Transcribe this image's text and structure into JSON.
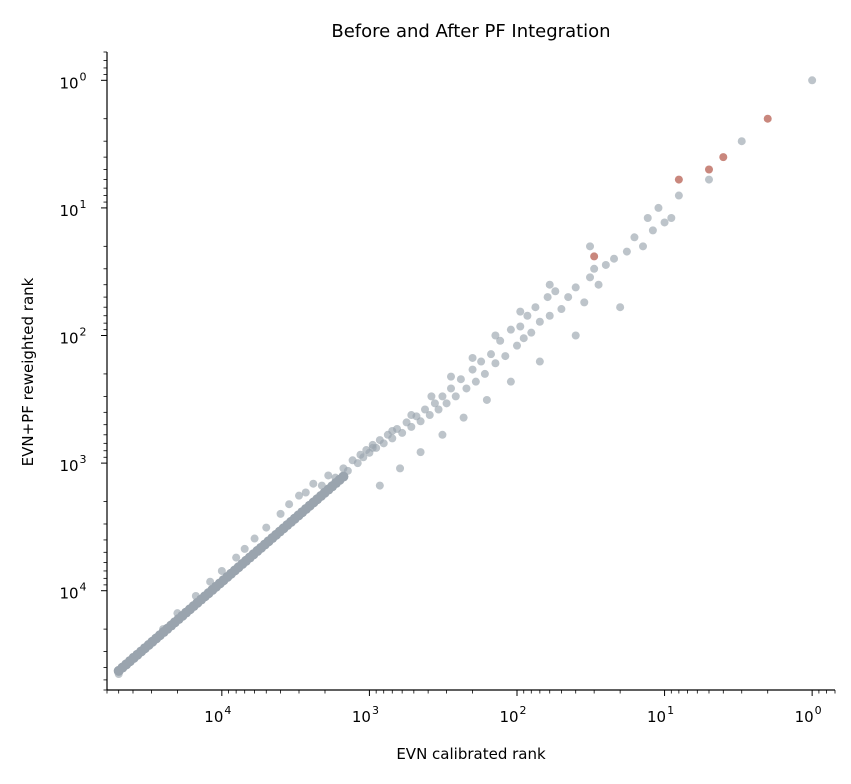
{
  "chart_data": {
    "type": "scatter",
    "title": "Before and After PF Integration",
    "xlabel": "EVN calibrated rank",
    "ylabel": "EVN+PF reweighted rank",
    "x_scale": "log",
    "y_scale": "log",
    "x_inverted": true,
    "y_inverted": true,
    "xlim": [
      60000,
      0.7
    ],
    "ylim": [
      60000,
      0.6
    ],
    "x_major_ticks": [
      {
        "value": 10000,
        "base": "10",
        "exp": "4"
      },
      {
        "value": 1000,
        "base": "10",
        "exp": "3"
      },
      {
        "value": 100,
        "base": "10",
        "exp": "2"
      },
      {
        "value": 10,
        "base": "10",
        "exp": "1"
      },
      {
        "value": 1,
        "base": "10",
        "exp": "0"
      }
    ],
    "y_major_ticks": [
      {
        "value": 10000,
        "base": "10",
        "exp": "4"
      },
      {
        "value": 1000,
        "base": "10",
        "exp": "3"
      },
      {
        "value": 100,
        "base": "10",
        "exp": "2"
      },
      {
        "value": 10,
        "base": "10",
        "exp": "1"
      },
      {
        "value": 1,
        "base": "10",
        "exp": "0"
      }
    ],
    "grid": false,
    "colors": {
      "background": "#9aa4ae",
      "highlighted": "#c9877d"
    },
    "series": [
      {
        "color": "#9aa4ae",
        "points": [
          [
            1,
            1
          ],
          [
            3,
            3
          ],
          [
            5,
            6
          ],
          [
            8,
            8
          ],
          [
            9,
            12
          ],
          [
            10,
            13
          ],
          [
            11,
            10
          ],
          [
            12,
            15
          ],
          [
            13,
            12
          ],
          [
            14,
            20
          ],
          [
            16,
            17
          ],
          [
            18,
            22
          ],
          [
            22,
            25
          ],
          [
            25,
            28
          ],
          [
            28,
            40
          ],
          [
            30,
            30
          ],
          [
            32,
            35
          ],
          [
            35,
            55
          ],
          [
            40,
            42
          ],
          [
            45,
            50
          ],
          [
            50,
            62
          ],
          [
            55,
            45
          ],
          [
            60,
            70
          ],
          [
            62,
            50
          ],
          [
            70,
            78
          ],
          [
            75,
            60
          ],
          [
            80,
            95
          ],
          [
            85,
            70
          ],
          [
            90,
            105
          ],
          [
            95,
            85
          ],
          [
            100,
            120
          ],
          [
            110,
            90
          ],
          [
            120,
            145
          ],
          [
            130,
            110
          ],
          [
            140,
            165
          ],
          [
            150,
            140
          ],
          [
            165,
            200
          ],
          [
            175,
            160
          ],
          [
            190,
            230
          ],
          [
            200,
            185
          ],
          [
            220,
            260
          ],
          [
            240,
            220
          ],
          [
            260,
            300
          ],
          [
            280,
            260
          ],
          [
            300,
            340
          ],
          [
            320,
            300
          ],
          [
            340,
            380
          ],
          [
            360,
            340
          ],
          [
            390,
            420
          ],
          [
            420,
            380
          ],
          [
            450,
            470
          ],
          [
            480,
            430
          ],
          [
            520,
            520
          ],
          [
            560,
            480
          ],
          [
            600,
            580
          ],
          [
            650,
            540
          ],
          [
            700,
            640
          ],
          [
            750,
            600
          ],
          [
            800,
            700
          ],
          [
            850,
            660
          ],
          [
            900,
            760
          ],
          [
            950,
            720
          ],
          [
            1000,
            830
          ],
          [
            1050,
            790
          ],
          [
            1100,
            900
          ],
          [
            1150,
            860
          ],
          [
            1200,
            1000
          ],
          [
            1300,
            950
          ],
          [
            1400,
            1150
          ],
          [
            1500,
            1100
          ],
          [
            1700,
            1300
          ],
          [
            1900,
            1250
          ],
          [
            2100,
            1500
          ],
          [
            2400,
            1450
          ],
          [
            2700,
            1700
          ],
          [
            3000,
            1800
          ],
          [
            3500,
            2100
          ],
          [
            4000,
            2500
          ],
          [
            5000,
            3200
          ],
          [
            6000,
            3900
          ],
          [
            7000,
            4700
          ],
          [
            8000,
            5500
          ],
          [
            10000,
            7000
          ],
          [
            12000,
            8500
          ],
          [
            15000,
            11000
          ],
          [
            20000,
            15000
          ],
          [
            25000,
            20000
          ],
          [
            30000,
            25000
          ],
          [
            40000,
            33000
          ],
          [
            50000,
            45000
          ],
          [
            32,
            20
          ],
          [
            60,
            40
          ],
          [
            95,
            65
          ],
          [
            140,
            100
          ],
          [
            200,
            150
          ],
          [
            280,
            210
          ],
          [
            380,
            300
          ],
          [
            520,
            420
          ],
          [
            700,
            560
          ],
          [
            950,
            760
          ],
          [
            20,
            60
          ],
          [
            40,
            100
          ],
          [
            70,
            160
          ],
          [
            110,
            230
          ],
          [
            160,
            320
          ],
          [
            230,
            440
          ],
          [
            320,
            600
          ],
          [
            450,
            820
          ],
          [
            620,
            1100
          ],
          [
            850,
            1500
          ]
        ]
      },
      {
        "color": "#c9877d",
        "points": [
          [
            2,
            2
          ],
          [
            4,
            4
          ],
          [
            5,
            5
          ],
          [
            8,
            6
          ],
          [
            30,
            24
          ]
        ]
      }
    ]
  }
}
